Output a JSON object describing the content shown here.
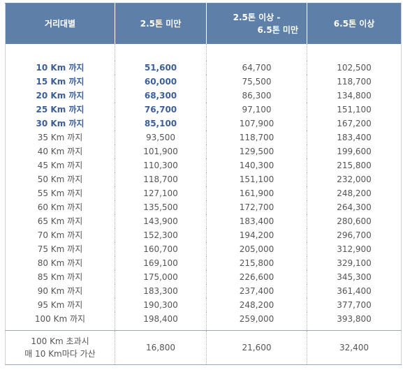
{
  "header": {
    "col0": "거리대별",
    "col1": "2.5톤 미만",
    "col2_line1": "2.5톤 이상 -",
    "col2_line2": "6.5톤 미만",
    "col3": "6.5톤 이상"
  },
  "rows": [
    {
      "distance": "10 Km 까지",
      "v1": "51,600",
      "v2": "64,700",
      "v3": "102,500",
      "bold": true
    },
    {
      "distance": "15 Km 까지",
      "v1": "60,000",
      "v2": "75,500",
      "v3": "118,700",
      "bold": true
    },
    {
      "distance": "20 Km 까지",
      "v1": "68,300",
      "v2": "86,300",
      "v3": "134,800",
      "bold": true
    },
    {
      "distance": "25 Km 까지",
      "v1": "76,700",
      "v2": "97,100",
      "v3": "151,100",
      "bold": true
    },
    {
      "distance": "30 Km 까지",
      "v1": "85,100",
      "v2": "107,900",
      "v3": "167,200",
      "bold": true
    },
    {
      "distance": "35 Km 까지",
      "v1": "93,500",
      "v2": "118,700",
      "v3": "183,400",
      "bold": false
    },
    {
      "distance": "40 Km 까지",
      "v1": "101,900",
      "v2": "129,500",
      "v3": "199,600",
      "bold": false
    },
    {
      "distance": "45 Km 까지",
      "v1": "110,300",
      "v2": "140,300",
      "v3": "215,800",
      "bold": false
    },
    {
      "distance": "50 Km 까지",
      "v1": "118,700",
      "v2": "151,100",
      "v3": "232,000",
      "bold": false
    },
    {
      "distance": "55 Km 까지",
      "v1": "127,100",
      "v2": "161,900",
      "v3": "248,200",
      "bold": false
    },
    {
      "distance": "60 Km 까지",
      "v1": "135,500",
      "v2": "172,700",
      "v3": "264,300",
      "bold": false
    },
    {
      "distance": "65 Km 까지",
      "v1": "143,900",
      "v2": "183,400",
      "v3": "280,600",
      "bold": false
    },
    {
      "distance": "70 Km 까지",
      "v1": "152,300",
      "v2": "194,200",
      "v3": "296,700",
      "bold": false
    },
    {
      "distance": "75 Km 까지",
      "v1": "160,700",
      "v2": "205,000",
      "v3": "312,900",
      "bold": false
    },
    {
      "distance": "80 Km 까지",
      "v1": "169,100",
      "v2": "215,800",
      "v3": "329,100",
      "bold": false
    },
    {
      "distance": "85 Km 까지",
      "v1": "175,000",
      "v2": "226,600",
      "v3": "345,300",
      "bold": false
    },
    {
      "distance": "90 Km 까지",
      "v1": "183,300",
      "v2": "237,400",
      "v3": "361,400",
      "bold": false
    },
    {
      "distance": "95 Km 까지",
      "v1": "190,300",
      "v2": "248,200",
      "v3": "377,700",
      "bold": false
    },
    {
      "distance": "100 Km 까지",
      "v1": "198,400",
      "v2": "259,000",
      "v3": "393,800",
      "bold": false
    }
  ],
  "footer": {
    "line1": "100 Km 초과시",
    "line2": "매 10 Km마다 가산",
    "v1": "16,800",
    "v2": "21,600",
    "v3": "32,400"
  },
  "colors": {
    "header_bg": "#5d7fa8",
    "bold_text": "#3c5f9a",
    "text": "#555555"
  }
}
